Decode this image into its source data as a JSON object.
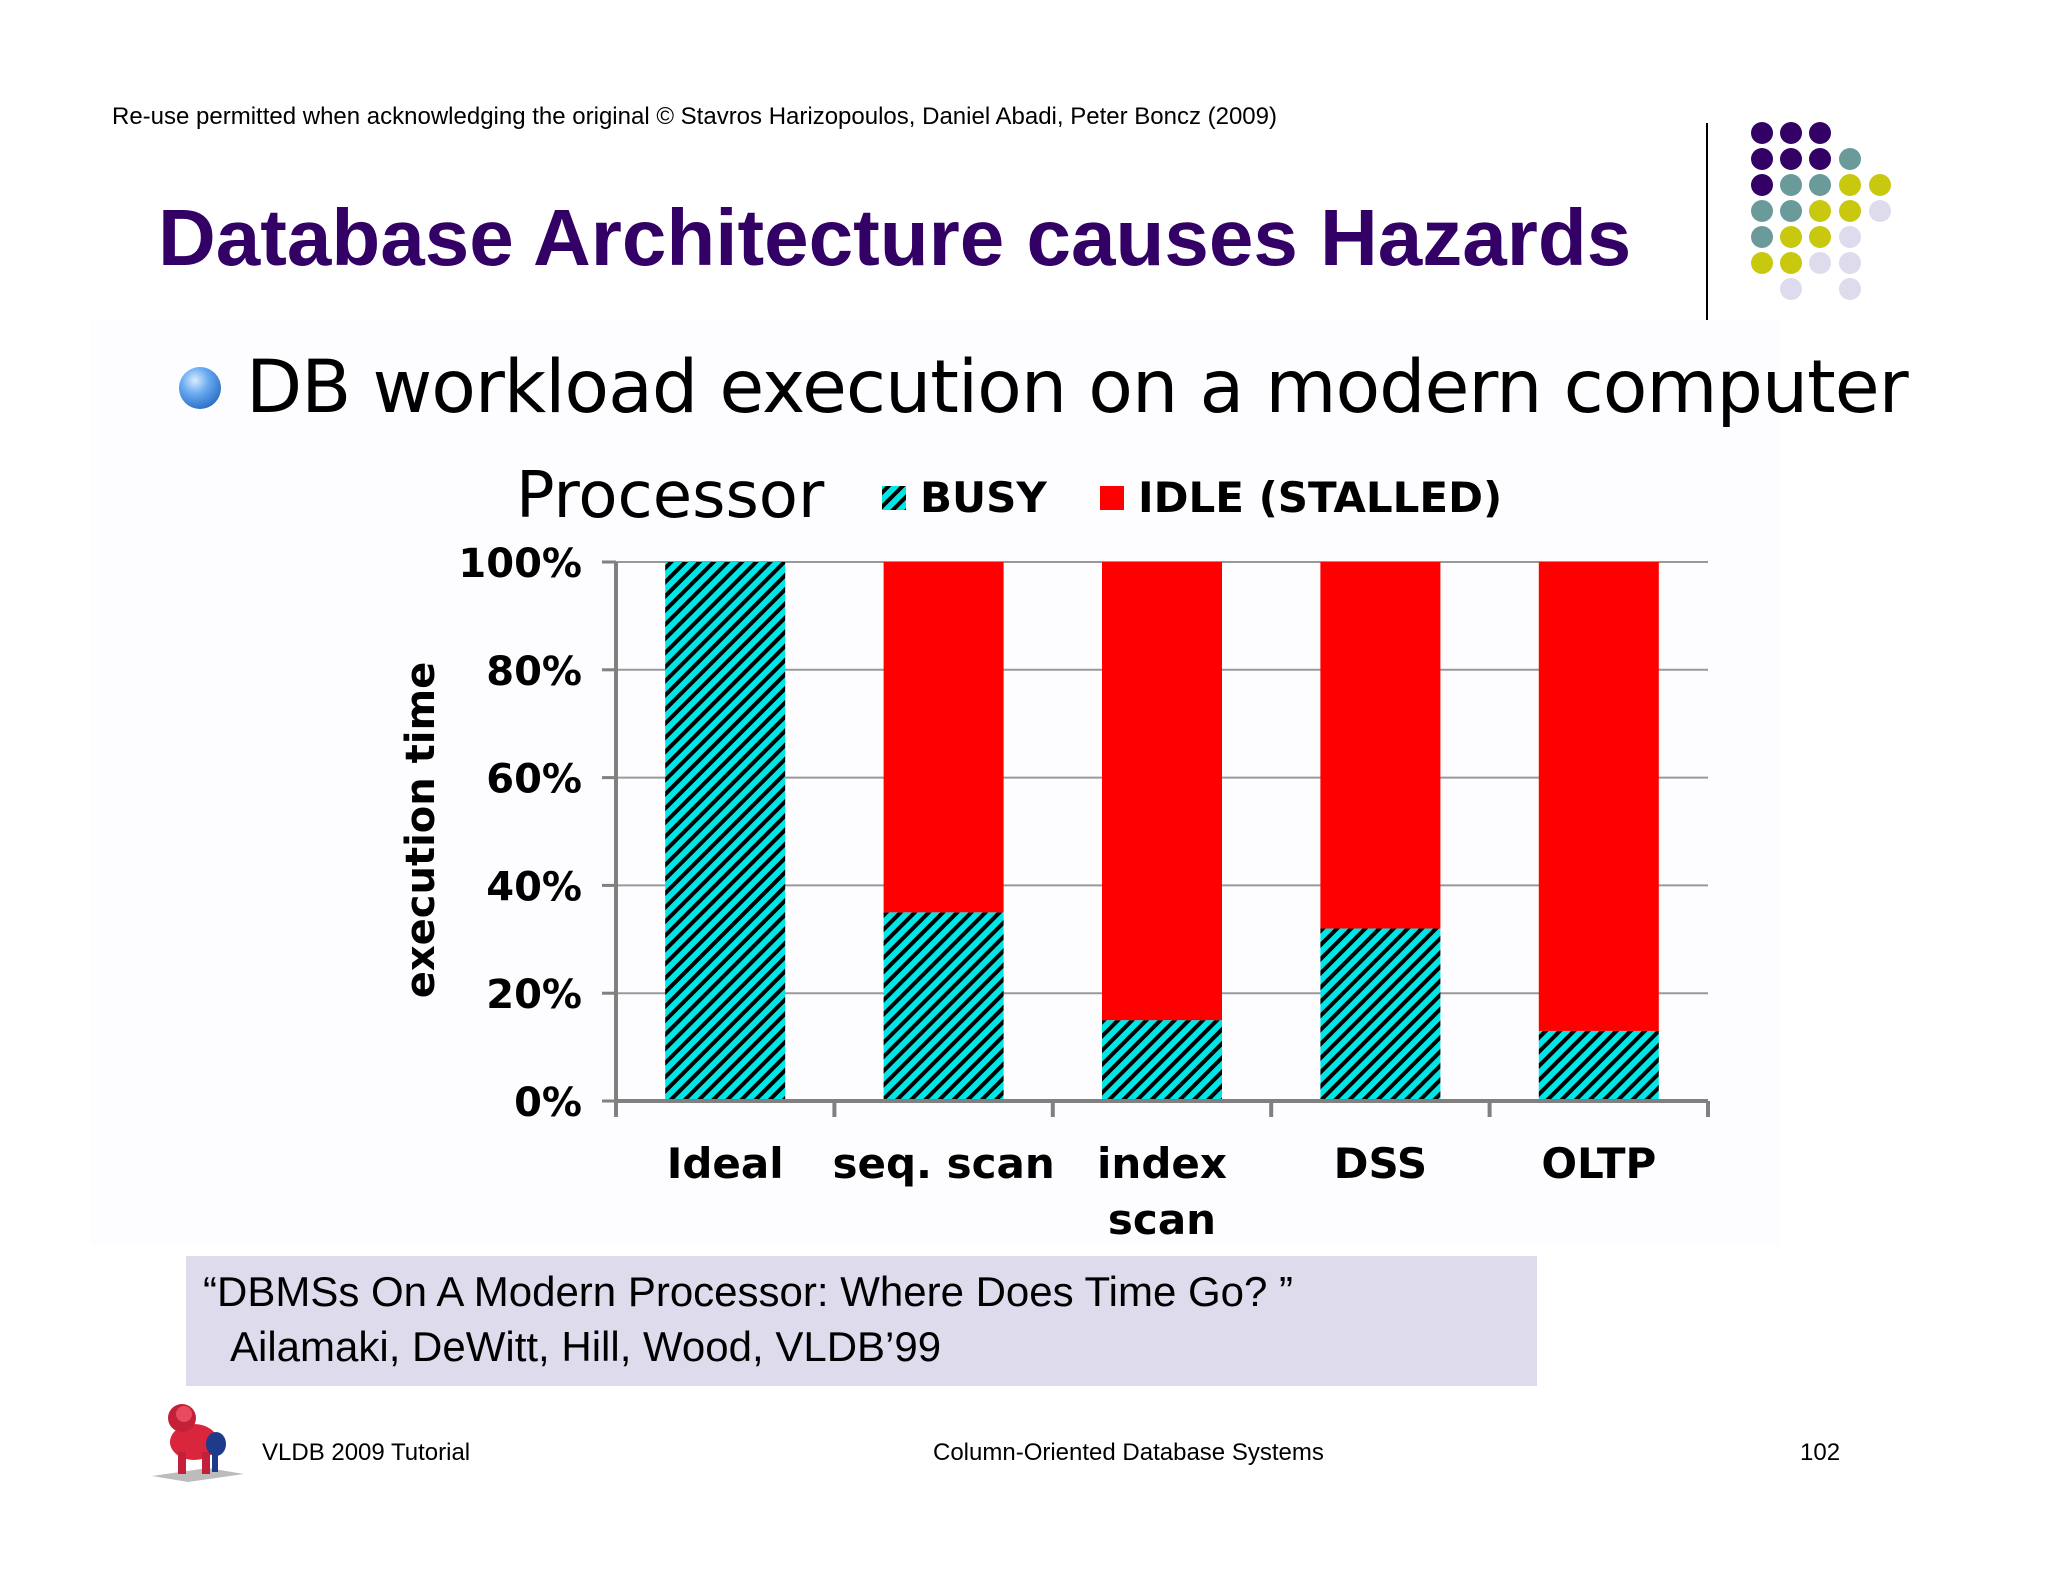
{
  "slide": {
    "copyright": "Re-use permitted when acknowledging the original © Stavros Harizopoulos, Daniel Abadi, Peter Boncz (2009)",
    "title": "Database Architecture causes Hazards",
    "bullet": "DB workload execution on a modern computer",
    "citation_line1": "“DBMSs On A Modern Processor: Where Does Time Go? ”",
    "citation_line2": "Ailamaki, DeWitt, Hill, Wood, VLDB’99",
    "footer_left": "VLDB 2009 Tutorial",
    "footer_center": "Column-Oriented Database Systems",
    "page_number": "102"
  },
  "colors": {
    "title": "#330066",
    "busy": "#00e5e5",
    "idle": "#ff0000",
    "citation_bg": "#dddbec",
    "dot_purple": "#330066",
    "dot_teal": "#6a9a9a",
    "dot_yellow": "#c8c80f",
    "dot_lavender": "#dddbec"
  },
  "icons": [
    "bullet-ball-icon",
    "dot-grid-logo",
    "red-lion-logo"
  ],
  "chart_data": {
    "type": "bar",
    "stacked": true,
    "title": "Processor",
    "xlabel": "",
    "ylabel": "execution time",
    "ylim": [
      0,
      100
    ],
    "yticks": [
      "0%",
      "20%",
      "40%",
      "60%",
      "80%",
      "100%"
    ],
    "categories": [
      "Ideal",
      "seq. scan",
      "index scan",
      "DSS",
      "OLTP"
    ],
    "series": [
      {
        "name": "BUSY",
        "values": [
          100,
          35,
          15,
          32,
          13
        ]
      },
      {
        "name": "IDLE (STALLED)",
        "values": [
          0,
          65,
          85,
          68,
          87
        ]
      }
    ],
    "legend": "top",
    "grid": true
  }
}
